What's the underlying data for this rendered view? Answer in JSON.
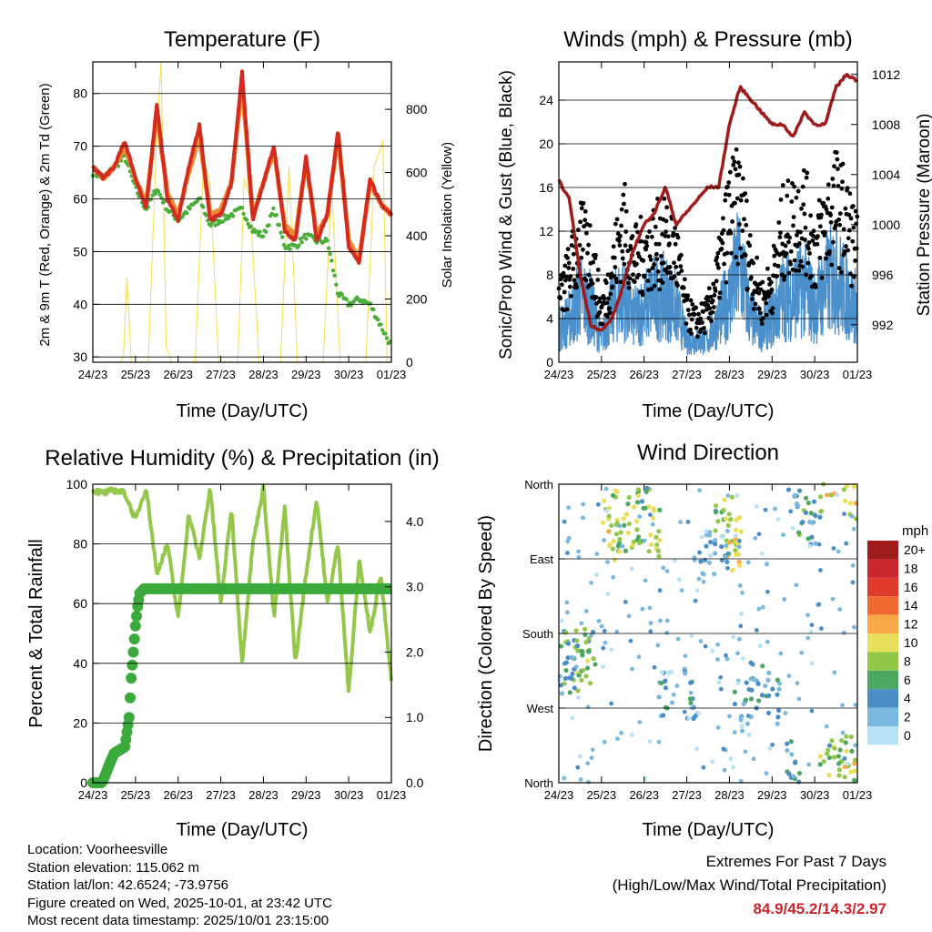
{
  "x_tick_labels": [
    "24/23",
    "25/23",
    "26/23",
    "27/23",
    "28/23",
    "29/23",
    "30/23",
    "01/23"
  ],
  "x_axis_label": "Time (Day/UTC)",
  "charts": {
    "temperature": {
      "title": "Temperature (F)",
      "ylabel": "2m & 9m T (Red, Orange) & 2m Td (Green)",
      "y2label": "Solar Insolation (Yellow)",
      "yticks": [
        "30",
        "40",
        "50",
        "60",
        "70",
        "80"
      ],
      "y2ticks": [
        "0",
        "200",
        "400",
        "600",
        "800"
      ]
    },
    "winds": {
      "title": "Winds (mph) & Pressure (mb)",
      "ylabel": "Sonic/Prop Wind & Gust (Blue, Black)",
      "y2label": "Station Pressure (Maroon)",
      "yticks": [
        "0",
        "4",
        "8",
        "12",
        "16",
        "20",
        "24"
      ],
      "y2ticks": [
        "992",
        "996",
        "1000",
        "1004",
        "1008",
        "1012"
      ]
    },
    "humidity": {
      "title": "Relative Humidity (%) & Precipitation (in)",
      "ylabel": "Percent & Total Rainfall",
      "yticks": [
        "0",
        "20",
        "40",
        "60",
        "80",
        "100"
      ],
      "y2ticks": [
        "0.0",
        "1.0",
        "2.0",
        "3.0",
        "4.0"
      ]
    },
    "direction": {
      "title": "Wind Direction",
      "ylabel": "Direction (Colored By Speed)",
      "yticks": [
        "North",
        "East",
        "South",
        "West",
        "North"
      ],
      "legend_title": "mph",
      "legend_labels": [
        "20+",
        "18",
        "16",
        "14",
        "12",
        "10",
        "8",
        "6",
        "4",
        "2",
        "0"
      ]
    }
  },
  "colors": {
    "temp_red": "#d42a20",
    "temp_orange": "#f08a30",
    "dewpoint_green": "#4cae3a",
    "solar_yellow": "#f5dc50",
    "wind_blue": "#4a90cc",
    "gust_black": "#000000",
    "pressure_maroon": "#a01c1c",
    "rh_green": "#93c84a",
    "rain_green": "#3aaa3a",
    "legend_colors": [
      "#a01c1c",
      "#c8262c",
      "#e03a2c",
      "#f06a30",
      "#f8a848",
      "#e8e05a",
      "#92c84a",
      "#4aa860",
      "#4a8ec8",
      "#7ab8e0",
      "#b8e2f6"
    ]
  },
  "footer": {
    "location": "Location: Voorheesville",
    "elevation": "Station elevation: 115.062 m",
    "latlon": "Station lat/lon: 42.6524; -73.9756",
    "created": "Figure created on Wed, 2025-10-01, at 23:42 UTC",
    "recent": "Most recent data timestamp: 2025/10/01 23:15:00"
  },
  "extremes": {
    "heading": "Extremes For Past 7 Days",
    "subheading": "(High/Low/Max Wind/Total Precipitation)",
    "values": "84.9/45.2/14.3/2.97"
  },
  "chart_data": [
    {
      "type": "line",
      "title": "Temperature (F)",
      "xlabel": "Time (Day/UTC)",
      "ylabel": "2m & 9m T (Red, Orange) & 2m Td (Green)",
      "y2label": "Solar Insolation (Yellow)",
      "ylim": [
        29,
        86
      ],
      "y2lim": [
        0,
        950
      ],
      "xlim": [
        0,
        7
      ],
      "x": [
        0,
        0.25,
        0.5,
        0.75,
        1.0,
        1.25,
        1.5,
        1.75,
        2.0,
        2.25,
        2.5,
        2.75,
        3.0,
        3.25,
        3.5,
        3.75,
        4.0,
        4.25,
        4.5,
        4.75,
        5.0,
        5.25,
        5.5,
        5.75,
        6.0,
        6.25,
        6.5,
        6.75,
        7.0
      ],
      "series": [
        {
          "name": "2m T",
          "color": "temp_red",
          "values": [
            66,
            64,
            66,
            71,
            64,
            58,
            78,
            60,
            56,
            66,
            74,
            56,
            57,
            63,
            84,
            56,
            63,
            70,
            54,
            52,
            68,
            52,
            57,
            73,
            51,
            48,
            64,
            59,
            57
          ]
        },
        {
          "name": "9m T",
          "color": "temp_orange",
          "values": [
            66,
            64,
            66,
            70,
            64,
            59,
            76,
            61,
            57,
            65,
            72,
            57,
            58,
            63,
            82,
            57,
            63,
            69,
            55,
            53,
            67,
            53,
            57,
            72,
            52,
            49,
            63,
            59,
            57
          ]
        },
        {
          "name": "2m Td",
          "color": "dewpoint_green",
          "values": [
            65,
            64,
            66,
            68,
            62,
            58,
            62,
            58,
            56,
            58,
            60,
            55,
            56,
            57,
            58,
            54,
            53,
            58,
            51,
            51,
            53,
            52,
            52,
            42,
            40,
            41,
            40,
            36,
            32
          ]
        },
        {
          "name": "Solar Insolation",
          "axis": "y2",
          "color": "solar_yellow",
          "x": [
            0.65,
            0.72,
            0.8,
            0.9,
            1.3,
            1.5,
            1.6,
            1.72,
            1.85,
            2.4,
            2.6,
            2.75,
            2.95,
            3.4,
            3.55,
            3.68,
            3.9,
            4.4,
            4.6,
            4.8,
            5.4,
            5.6,
            5.8,
            6.4,
            6.6,
            6.8,
            6.9
          ],
          "values": [
            0,
            20,
            270,
            0,
            0,
            720,
            950,
            50,
            0,
            0,
            650,
            560,
            0,
            0,
            580,
            520,
            0,
            0,
            620,
            0,
            0,
            560,
            0,
            0,
            620,
            700,
            0
          ]
        }
      ]
    },
    {
      "type": "scatter",
      "title": "Winds (mph) & Pressure (mb)",
      "xlabel": "Time (Day/UTC)",
      "ylabel": "Sonic/Prop Wind & Gust (Blue, Black)",
      "y2label": "Station Pressure (Maroon)",
      "ylim": [
        0,
        27.5
      ],
      "y2lim": [
        989,
        1013
      ],
      "xlim": [
        0,
        7
      ],
      "x": [
        0,
        0.25,
        0.5,
        0.75,
        1.0,
        1.25,
        1.5,
        1.75,
        2.0,
        2.25,
        2.5,
        2.75,
        3.0,
        3.25,
        3.5,
        3.75,
        4.0,
        4.25,
        4.5,
        4.75,
        5.0,
        5.25,
        5.5,
        5.75,
        6.0,
        6.25,
        6.5,
        6.75,
        7.0
      ],
      "series": [
        {
          "name": "Wind",
          "color": "wind_blue",
          "values": [
            3,
            4,
            6,
            5,
            2,
            5,
            6,
            4,
            5,
            6,
            6,
            5,
            2,
            2,
            2,
            4,
            6,
            9,
            4,
            3,
            4,
            6,
            6,
            7,
            5,
            7,
            8,
            6,
            5
          ]
        },
        {
          "name": "Gust",
          "color": "gust_black",
          "values": [
            6,
            9,
            12,
            11,
            5,
            9,
            14,
            10,
            11,
            12,
            12,
            11,
            5,
            4,
            5,
            9,
            15,
            16,
            10,
            6,
            8,
            13,
            14,
            15,
            11,
            14,
            16,
            14,
            11
          ]
        },
        {
          "name": "Pressure",
          "axis": "y2",
          "color": "pressure_maroon",
          "values": [
            1003.5,
            1002,
            996,
            992,
            991.5,
            992.5,
            995,
            998,
            1000,
            1001,
            1003,
            1000,
            1001,
            1002,
            1003,
            1003,
            1008,
            1011,
            1010,
            1009,
            1008,
            1008,
            1007,
            1009,
            1008,
            1008,
            1011,
            1012,
            1011.5
          ]
        }
      ]
    },
    {
      "type": "line",
      "title": "Relative Humidity (%) & Precipitation (in)",
      "xlabel": "Time (Day/UTC)",
      "ylabel": "Percent & Total Rainfall",
      "ylim": [
        0,
        100
      ],
      "y2lim": [
        0,
        4.57
      ],
      "xlim": [
        0,
        7
      ],
      "x": [
        0,
        0.25,
        0.5,
        0.75,
        1.0,
        1.25,
        1.5,
        1.75,
        2.0,
        2.25,
        2.5,
        2.75,
        3.0,
        3.25,
        3.5,
        3.75,
        4.0,
        4.25,
        4.5,
        4.75,
        5.0,
        5.25,
        5.5,
        5.75,
        6.0,
        6.25,
        6.5,
        6.75,
        7.0
      ],
      "series": [
        {
          "name": "Relative Humidity",
          "color": "rh_green",
          "values": [
            98,
            97,
            98,
            97,
            88,
            99,
            70,
            80,
            55,
            90,
            75,
            99,
            60,
            92,
            40,
            80,
            99,
            55,
            92,
            40,
            70,
            95,
            60,
            80,
            30,
            75,
            50,
            70,
            35
          ]
        },
        {
          "name": "Total Rainfall",
          "axis": "y2",
          "color": "rain_green",
          "values": [
            0,
            0.05,
            0.45,
            0.55,
            1.95,
            2.9,
            2.97,
            2.97,
            2.97,
            2.97,
            2.97,
            2.97,
            2.97,
            2.97,
            2.97,
            2.97,
            2.97,
            2.97,
            2.97,
            2.97,
            2.97,
            2.97,
            2.97,
            2.97,
            2.97,
            2.97,
            2.97,
            2.97,
            2.97
          ]
        }
      ]
    },
    {
      "type": "scatter",
      "title": "Wind Direction",
      "xlabel": "Time (Day/UTC)",
      "ylabel": "Direction (Colored By Speed)",
      "ylim": [
        0,
        360
      ],
      "xlim": [
        0,
        7
      ],
      "direction_ticks": [
        "North",
        "East",
        "South",
        "West",
        "North"
      ],
      "legend": {
        "title": "mph",
        "labels": [
          "20+",
          "18",
          "16",
          "14",
          "12",
          "10",
          "8",
          "6",
          "4",
          "2",
          "0"
        ]
      },
      "points": [
        {
          "x": 0.3,
          "dir": 150,
          "speed": 6
        },
        {
          "x": 0.5,
          "dir": 145,
          "speed": 7
        },
        {
          "x": 0.7,
          "dir": 155,
          "speed": 6
        },
        {
          "x": 0.2,
          "dir": 140,
          "speed": 4
        },
        {
          "x": 1.2,
          "dir": 320,
          "speed": 9
        },
        {
          "x": 1.35,
          "dir": 290,
          "speed": 8
        },
        {
          "x": 1.7,
          "dir": 310,
          "speed": 8
        },
        {
          "x": 2.0,
          "dir": 320,
          "speed": 7
        },
        {
          "x": 2.2,
          "dir": 305,
          "speed": 9
        },
        {
          "x": 2.5,
          "dir": 100,
          "speed": 3
        },
        {
          "x": 3.1,
          "dir": 110,
          "speed": 4
        },
        {
          "x": 3.5,
          "dir": 280,
          "speed": 3
        },
        {
          "x": 3.8,
          "dir": 300,
          "speed": 6
        },
        {
          "x": 4.0,
          "dir": 310,
          "speed": 9
        },
        {
          "x": 4.1,
          "dir": 290,
          "speed": 11
        },
        {
          "x": 4.3,
          "dir": 90,
          "speed": 3
        },
        {
          "x": 4.6,
          "dir": 110,
          "speed": 4
        },
        {
          "x": 5.0,
          "dir": 100,
          "speed": 3
        },
        {
          "x": 5.5,
          "dir": 20,
          "speed": 4
        },
        {
          "x": 5.7,
          "dir": 330,
          "speed": 5
        },
        {
          "x": 6.0,
          "dir": 320,
          "speed": 5
        },
        {
          "x": 6.3,
          "dir": 10,
          "speed": 9
        },
        {
          "x": 6.5,
          "dir": 20,
          "speed": 7
        },
        {
          "x": 6.8,
          "dir": 350,
          "speed": 10
        },
        {
          "x": 6.9,
          "dir": 30,
          "speed": 8
        }
      ]
    }
  ]
}
